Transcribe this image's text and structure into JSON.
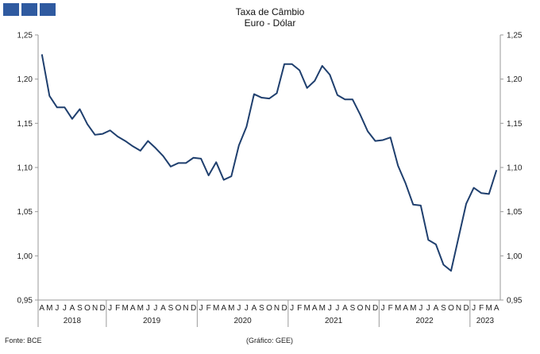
{
  "header": {
    "title_line1": "Taxa de Câmbio",
    "title_line2": "Euro - Dólar"
  },
  "footer": {
    "source": "Fonte: BCE",
    "credit": "(Gráfico: GEE)"
  },
  "colors": {
    "line": "#1f3f6e",
    "axis": "#9a9a9a",
    "logo": "#2f5aa0"
  },
  "chart_data": {
    "type": "line",
    "title": "Taxa de Câmbio Euro - Dólar",
    "xlabel": "",
    "ylabel": "",
    "ylim": [
      0.95,
      1.25
    ],
    "y_ticks": [
      "1,25",
      "1,20",
      "1,15",
      "1,10",
      "1,05",
      "1,00",
      "0,95"
    ],
    "y_axis_right": true,
    "grid": false,
    "month_labels": [
      "A",
      "M",
      "J",
      "J",
      "A",
      "S",
      "O",
      "N",
      "D",
      "J",
      "F",
      "M",
      "A",
      "M",
      "J",
      "J",
      "A",
      "S",
      "O",
      "N",
      "D",
      "J",
      "F",
      "M",
      "A",
      "M",
      "J",
      "J",
      "A",
      "S",
      "O",
      "N",
      "D",
      "J",
      "F",
      "M",
      "A",
      "M",
      "J",
      "J",
      "A",
      "S",
      "O",
      "N",
      "D",
      "J",
      "F",
      "M",
      "A",
      "M",
      "J",
      "J",
      "A",
      "S",
      "O",
      "N",
      "D",
      "J",
      "F",
      "M",
      "A"
    ],
    "year_groups": [
      {
        "label": "2018",
        "count": 9
      },
      {
        "label": "2019",
        "count": 12
      },
      {
        "label": "2020",
        "count": 12
      },
      {
        "label": "2021",
        "count": 12
      },
      {
        "label": "2022",
        "count": 12
      },
      {
        "label": "2023",
        "count": 4
      }
    ],
    "series": [
      {
        "values": [
          1.228,
          1.181,
          1.168,
          1.168,
          1.155,
          1.166,
          1.149,
          1.137,
          1.138,
          1.142,
          1.135,
          1.13,
          1.124,
          1.119,
          1.13,
          1.122,
          1.113,
          1.101,
          1.105,
          1.105,
          1.111,
          1.11,
          1.091,
          1.106,
          1.086,
          1.09,
          1.125,
          1.146,
          1.183,
          1.179,
          1.178,
          1.184,
          1.217,
          1.217,
          1.21,
          1.19,
          1.198,
          1.215,
          1.205,
          1.182,
          1.177,
          1.177,
          1.16,
          1.141,
          1.13,
          1.131,
          1.134,
          1.102,
          1.082,
          1.058,
          1.057,
          1.018,
          1.013,
          0.99,
          0.983,
          1.021,
          1.059,
          1.077,
          1.071,
          1.07,
          1.097
        ]
      }
    ]
  }
}
